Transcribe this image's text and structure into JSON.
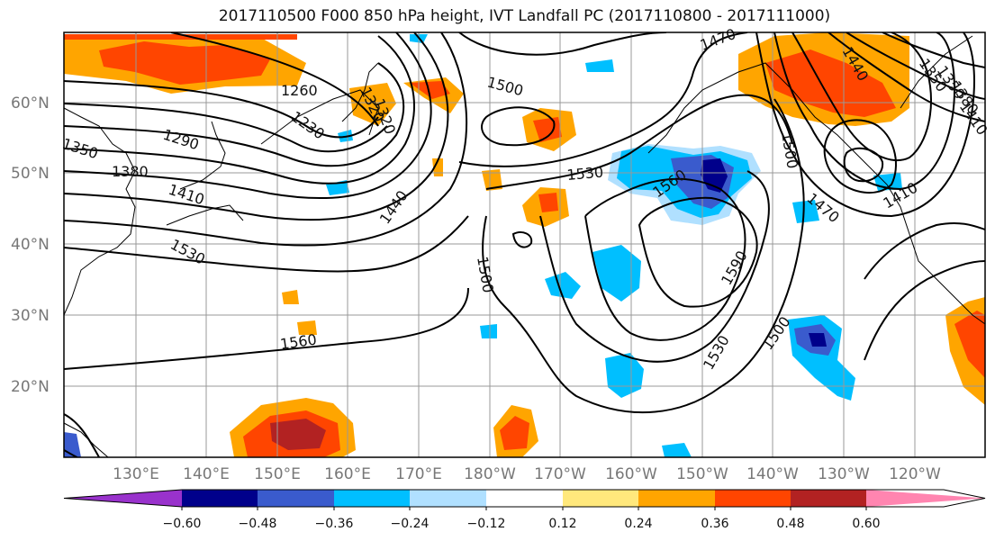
{
  "title": "2017110500 F000 850 hPa height, IVT Landfall PC (2017110800 - 2017111000)",
  "lat_labels": [
    "60°N",
    "50°N",
    "40°N",
    "30°N",
    "20°N"
  ],
  "lon_labels": [
    "130°E",
    "140°E",
    "150°E",
    "160°E",
    "170°E",
    "180°W",
    "170°W",
    "160°W",
    "150°W",
    "140°W",
    "130°W",
    "120°W"
  ],
  "contour_labels": [
    "1470",
    "1440",
    "1350",
    "1260",
    "1230",
    "1290",
    "1320",
    "1350",
    "1380",
    "1410",
    "1530",
    "1440",
    "1500",
    "1560",
    "1500",
    "1530",
    "1500",
    "1560",
    "1590",
    "1530",
    "1500",
    "1500",
    "1470",
    "1410",
    "1350",
    "1380",
    "1410",
    "1320"
  ],
  "colorbar": {
    "tick_labels": [
      "−0.60",
      "−0.48",
      "−0.36",
      "−0.24",
      "−0.12",
      "0.12",
      "0.24",
      "0.36",
      "0.48",
      "0.60"
    ],
    "colors": [
      "#9932cc",
      "#00008b",
      "#3a5bcd",
      "#00bfff",
      "#b0e0ff",
      "#ffffff",
      "#ffe87c",
      "#ffa500",
      "#ff4500",
      "#b22222",
      "#ff85b0"
    ]
  }
}
